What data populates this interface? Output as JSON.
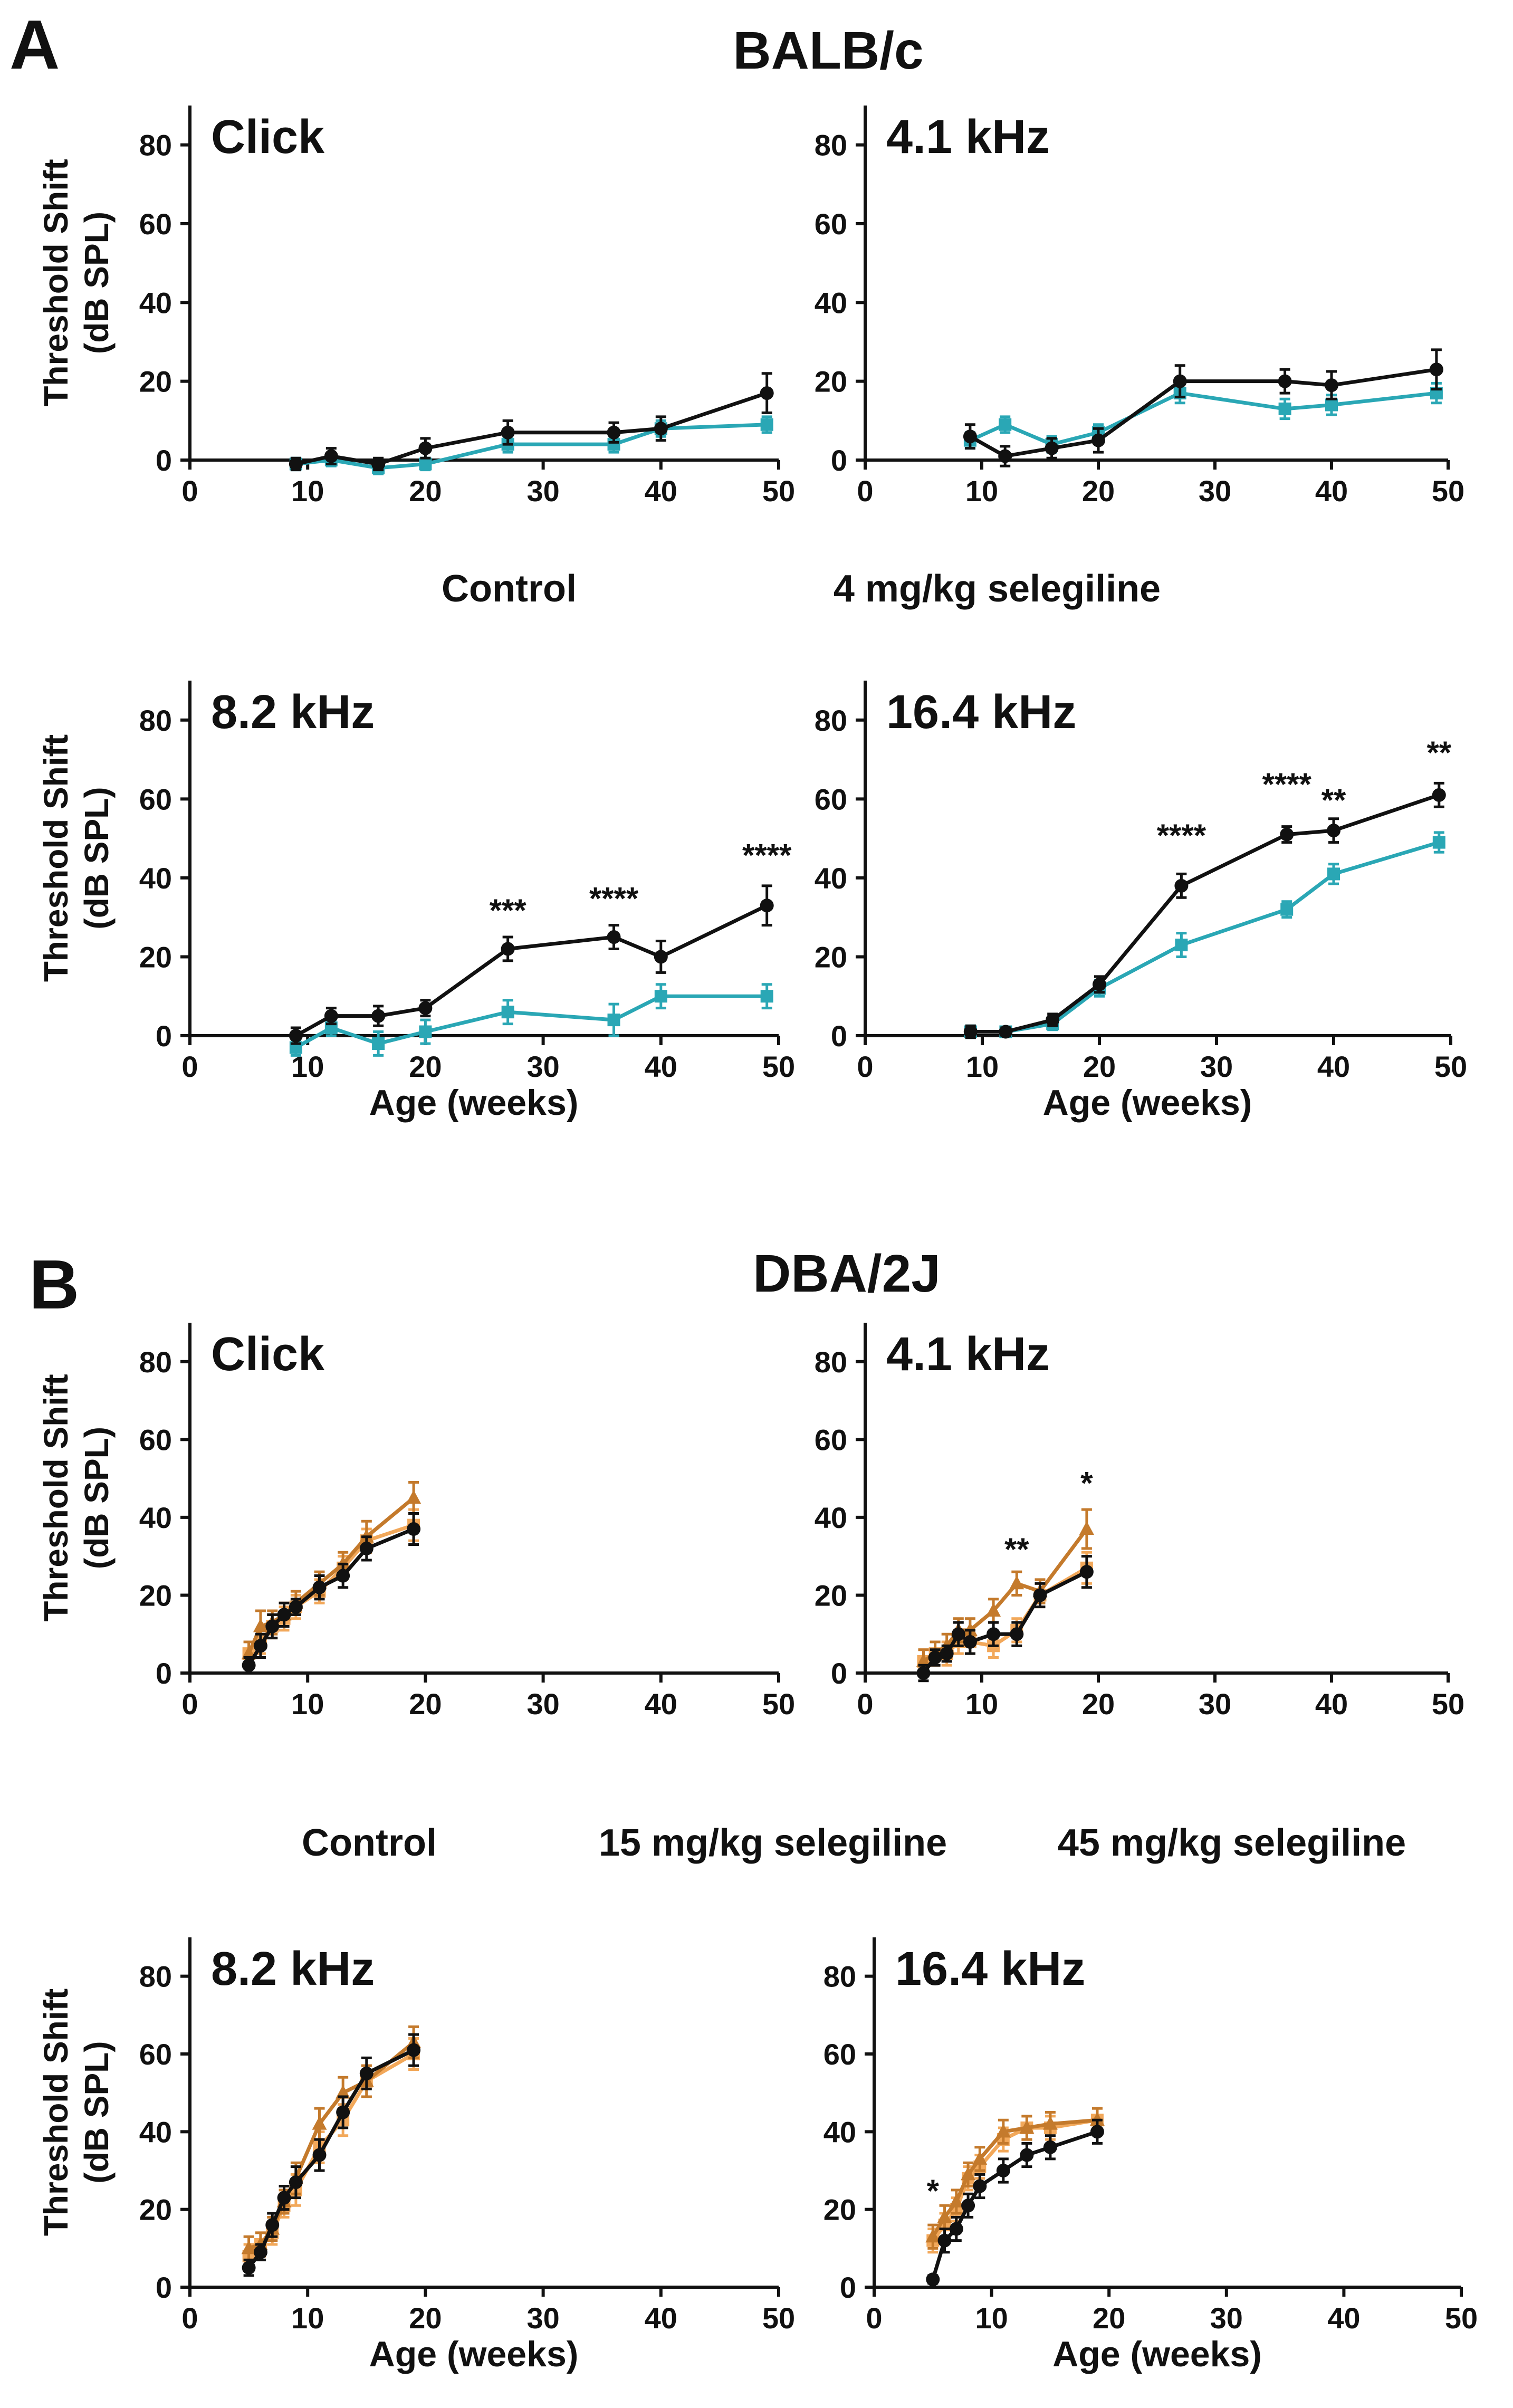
{
  "panel_a": {
    "letter": "A",
    "strain": "BALB/c",
    "legend": [
      {
        "label": "Control",
        "color": "#111111"
      },
      {
        "label": "4 mg/kg selegiline",
        "color": "#2aa7b5"
      }
    ]
  },
  "panel_b": {
    "letter": "B",
    "strain": "DBA/2J",
    "legend": [
      {
        "label": "Control",
        "color": "#111111"
      },
      {
        "label": "15 mg/kg selegiline",
        "color": "#f2a85a"
      },
      {
        "label": "45 mg/kg selegiline",
        "color": "#c47a2c"
      }
    ]
  },
  "chart_data": [
    {
      "type": "line",
      "title": "Click",
      "xlabel": "",
      "ylabel": "Threshold Shift (dB SPL)",
      "xlim": [
        0,
        50
      ],
      "ylim": [
        0,
        90
      ],
      "xticks": [
        0,
        10,
        20,
        30,
        40,
        50
      ],
      "yticks": [
        0,
        20,
        40,
        60,
        80
      ],
      "series": [
        {
          "name": "4 mg/kg selegiline",
          "color": "#2aa7b5",
          "marker": "square",
          "x": [
            9,
            12,
            16,
            20,
            27,
            36,
            40,
            49
          ],
          "y": [
            -1,
            0,
            -2,
            -1,
            4,
            4,
            8,
            9
          ],
          "err": [
            1.5,
            1.5,
            1.5,
            1.5,
            2,
            2,
            2,
            2
          ]
        },
        {
          "name": "Control",
          "color": "#111111",
          "marker": "circle",
          "x": [
            9,
            12,
            16,
            20,
            27,
            36,
            40,
            49
          ],
          "y": [
            -1,
            1,
            -1,
            3,
            7,
            7,
            8,
            17
          ],
          "err": [
            1.5,
            2,
            1.5,
            2.5,
            3,
            2.5,
            3,
            5
          ]
        }
      ],
      "annotations": []
    },
    {
      "type": "line",
      "title": "4.1 kHz",
      "xlabel": "",
      "ylabel": "",
      "xlim": [
        0,
        50
      ],
      "ylim": [
        0,
        90
      ],
      "xticks": [
        0,
        10,
        20,
        30,
        40,
        50
      ],
      "yticks": [
        0,
        20,
        40,
        60,
        80
      ],
      "series": [
        {
          "name": "4 mg/kg selegiline",
          "color": "#2aa7b5",
          "marker": "square",
          "x": [
            9,
            12,
            16,
            20,
            27,
            36,
            40,
            49
          ],
          "y": [
            5,
            9,
            4,
            7,
            17,
            13,
            14,
            17
          ],
          "err": [
            2,
            2,
            2,
            2,
            2.5,
            2.5,
            2.5,
            2.5
          ]
        },
        {
          "name": "Control",
          "color": "#111111",
          "marker": "circle",
          "x": [
            9,
            12,
            16,
            20,
            27,
            36,
            40,
            49
          ],
          "y": [
            6,
            1,
            3,
            5,
            20,
            20,
            19,
            23
          ],
          "err": [
            3,
            2.5,
            2.5,
            3,
            4,
            3,
            3.5,
            5
          ]
        }
      ],
      "annotations": []
    },
    {
      "type": "line",
      "title": "8.2 kHz",
      "xlabel": "Age (weeks)",
      "ylabel": "Threshold Shift (dB SPL)",
      "xlim": [
        0,
        50
      ],
      "ylim": [
        0,
        90
      ],
      "xticks": [
        0,
        10,
        20,
        30,
        40,
        50
      ],
      "yticks": [
        0,
        20,
        40,
        60,
        80
      ],
      "series": [
        {
          "name": "4 mg/kg selegiline",
          "color": "#2aa7b5",
          "marker": "square",
          "x": [
            9,
            12,
            16,
            20,
            27,
            36,
            40,
            49
          ],
          "y": [
            -3,
            2,
            -2,
            1,
            6,
            4,
            10,
            10
          ],
          "err": [
            2,
            2,
            3,
            3,
            3,
            4,
            3,
            3
          ]
        },
        {
          "name": "Control",
          "color": "#111111",
          "marker": "circle",
          "x": [
            9,
            12,
            16,
            20,
            27,
            36,
            40,
            49
          ],
          "y": [
            0,
            5,
            5,
            7,
            22,
            25,
            20,
            33
          ],
          "err": [
            2,
            2,
            2.5,
            2,
            3,
            3,
            4,
            5
          ]
        }
      ],
      "annotations": [
        {
          "x": 27,
          "y": 29,
          "text": "***"
        },
        {
          "x": 36,
          "y": 32,
          "text": "****"
        },
        {
          "x": 49,
          "y": 43,
          "text": "****"
        }
      ]
    },
    {
      "type": "line",
      "title": "16.4 kHz",
      "xlabel": "Age (weeks)",
      "ylabel": "",
      "xlim": [
        0,
        50
      ],
      "ylim": [
        0,
        90
      ],
      "xticks": [
        0,
        10,
        20,
        30,
        40,
        50
      ],
      "yticks": [
        0,
        20,
        40,
        60,
        80
      ],
      "series": [
        {
          "name": "4 mg/kg selegiline",
          "color": "#2aa7b5",
          "marker": "square",
          "x": [
            9,
            12,
            16,
            20,
            27,
            36,
            40,
            49
          ],
          "y": [
            1,
            1,
            3,
            12,
            23,
            32,
            41,
            49
          ],
          "err": [
            1.5,
            1,
            1.5,
            2,
            3,
            2,
            2.5,
            2.5
          ]
        },
        {
          "name": "Control",
          "color": "#111111",
          "marker": "circle",
          "x": [
            9,
            12,
            16,
            20,
            27,
            36,
            40,
            49
          ],
          "y": [
            1,
            1,
            4,
            13,
            38,
            51,
            52,
            61
          ],
          "err": [
            1.5,
            1,
            1.5,
            2,
            3,
            2,
            3,
            3
          ]
        }
      ],
      "annotations": [
        {
          "x": 27,
          "y": 48,
          "text": "****"
        },
        {
          "x": 36,
          "y": 61,
          "text": "****"
        },
        {
          "x": 40,
          "y": 57,
          "text": "**"
        },
        {
          "x": 49,
          "y": 69,
          "text": "**"
        }
      ]
    },
    {
      "type": "line",
      "title": "Click",
      "xlabel": "",
      "ylabel": "Threshold Shift (dB SPL)",
      "xlim": [
        0,
        50
      ],
      "ylim": [
        0,
        90
      ],
      "xticks": [
        0,
        10,
        20,
        30,
        40,
        50
      ],
      "yticks": [
        0,
        20,
        40,
        60,
        80
      ],
      "series": [
        {
          "name": "15 mg/kg selegiline",
          "color": "#f2a85a",
          "marker": "square",
          "x": [
            5,
            6,
            7,
            8,
            9,
            11,
            13,
            15,
            19
          ],
          "y": [
            5,
            8,
            12,
            14,
            17,
            21,
            27,
            34,
            38
          ],
          "err": [
            3,
            3,
            3,
            3,
            3,
            3,
            3,
            3,
            4
          ]
        },
        {
          "name": "45 mg/kg selegiline",
          "color": "#c47a2c",
          "marker": "triangle",
          "x": [
            5,
            6,
            7,
            8,
            9,
            11,
            13,
            15,
            19
          ],
          "y": [
            5,
            12,
            13,
            15,
            18,
            23,
            28,
            35,
            45
          ],
          "err": [
            3,
            4,
            3,
            3,
            3,
            3,
            3,
            4,
            4
          ]
        },
        {
          "name": "Control",
          "color": "#111111",
          "marker": "circle",
          "x": [
            5,
            6,
            7,
            8,
            9,
            11,
            13,
            15,
            19
          ],
          "y": [
            2,
            7,
            12,
            15,
            17,
            22,
            25,
            32,
            37
          ],
          "err": [
            2,
            3,
            3,
            3,
            2,
            3,
            3,
            3,
            4
          ]
        }
      ],
      "annotations": []
    },
    {
      "type": "line",
      "title": "4.1 kHz",
      "xlabel": "",
      "ylabel": "",
      "xlim": [
        0,
        50
      ],
      "ylim": [
        0,
        90
      ],
      "xticks": [
        0,
        10,
        20,
        30,
        40,
        50
      ],
      "yticks": [
        0,
        20,
        40,
        60,
        80
      ],
      "series": [
        {
          "name": "15 mg/kg selegiline",
          "color": "#f2a85a",
          "marker": "square",
          "x": [
            5,
            6,
            7,
            8,
            9,
            11,
            13,
            15,
            19
          ],
          "y": [
            3,
            5,
            5,
            8,
            8,
            7,
            11,
            20,
            27
          ],
          "err": [
            3,
            3,
            3,
            3,
            3,
            3,
            3,
            3,
            4
          ]
        },
        {
          "name": "45 mg/kg selegiline",
          "color": "#c47a2c",
          "marker": "triangle",
          "x": [
            5,
            6,
            7,
            8,
            9,
            11,
            13,
            15,
            19
          ],
          "y": [
            3,
            5,
            7,
            11,
            11,
            16,
            23,
            21,
            37
          ],
          "err": [
            3,
            3,
            3,
            3,
            3,
            3,
            3,
            3,
            5
          ]
        },
        {
          "name": "Control",
          "color": "#111111",
          "marker": "circle",
          "x": [
            5,
            6,
            7,
            8,
            9,
            11,
            13,
            15,
            19
          ],
          "y": [
            0,
            4,
            5,
            10,
            8,
            10,
            10,
            20,
            26
          ],
          "err": [
            2,
            2,
            2,
            3,
            3,
            3,
            3,
            3,
            4
          ]
        }
      ],
      "annotations": [
        {
          "x": 13,
          "y": 29,
          "text": "**"
        },
        {
          "x": 19,
          "y": 46,
          "text": "*"
        }
      ]
    },
    {
      "type": "line",
      "title": "8.2 kHz",
      "xlabel": "Age (weeks)",
      "ylabel": "Threshold Shift (dB SPL)",
      "xlim": [
        0,
        50
      ],
      "ylim": [
        0,
        90
      ],
      "xticks": [
        0,
        10,
        20,
        30,
        40,
        50
      ],
      "yticks": [
        0,
        20,
        40,
        60,
        80
      ],
      "series": [
        {
          "name": "15 mg/kg selegiline",
          "color": "#f2a85a",
          "marker": "square",
          "x": [
            5,
            6,
            7,
            8,
            9,
            11,
            13,
            15,
            19
          ],
          "y": [
            8,
            11,
            14,
            21,
            25,
            36,
            43,
            53,
            60
          ],
          "err": [
            3,
            3,
            3,
            3,
            4,
            4,
            4,
            4,
            4
          ]
        },
        {
          "name": "45 mg/kg selegiline",
          "color": "#c47a2c",
          "marker": "triangle",
          "x": [
            5,
            6,
            7,
            8,
            9,
            11,
            13,
            15,
            19
          ],
          "y": [
            10,
            11,
            15,
            22,
            28,
            42,
            50,
            53,
            63
          ],
          "err": [
            3,
            3,
            3,
            3,
            4,
            4,
            4,
            4,
            4
          ]
        },
        {
          "name": "Control",
          "color": "#111111",
          "marker": "circle",
          "x": [
            5,
            6,
            7,
            8,
            9,
            11,
            13,
            15,
            19
          ],
          "y": [
            5,
            9,
            16,
            23,
            27,
            34,
            45,
            55,
            61
          ],
          "err": [
            2,
            2,
            3,
            3,
            4,
            4,
            4,
            4,
            4
          ]
        }
      ],
      "annotations": []
    },
    {
      "type": "line",
      "title": "16.4 kHz",
      "xlabel": "Age (weeks)",
      "ylabel": "",
      "xlim": [
        0,
        50
      ],
      "ylim": [
        0,
        90
      ],
      "xticks": [
        0,
        10,
        20,
        30,
        40,
        50
      ],
      "yticks": [
        0,
        20,
        40,
        60,
        80
      ],
      "series": [
        {
          "name": "15 mg/kg selegiline",
          "color": "#f2a85a",
          "marker": "square",
          "x": [
            5,
            6,
            7,
            8,
            9,
            11,
            13,
            15,
            19
          ],
          "y": [
            12,
            16,
            20,
            28,
            31,
            38,
            41,
            41,
            43
          ],
          "err": [
            3,
            3,
            3,
            3,
            3,
            3,
            3,
            3,
            3
          ]
        },
        {
          "name": "45 mg/kg selegiline",
          "color": "#c47a2c",
          "marker": "triangle",
          "x": [
            5,
            6,
            7,
            8,
            9,
            11,
            13,
            15,
            19
          ],
          "y": [
            13,
            18,
            22,
            29,
            33,
            40,
            41,
            42,
            43
          ],
          "err": [
            3,
            3,
            3,
            3,
            3,
            3,
            3,
            3,
            3
          ]
        },
        {
          "name": "Control",
          "color": "#111111",
          "marker": "circle",
          "x": [
            5,
            6,
            7,
            8,
            9,
            11,
            13,
            15,
            19
          ],
          "y": [
            2,
            12,
            15,
            21,
            26,
            30,
            34,
            36,
            40
          ],
          "err": [
            1,
            3,
            3,
            3,
            3,
            3,
            3,
            3,
            3
          ]
        }
      ],
      "annotations": [
        {
          "x": 5,
          "y": 22,
          "text": "*"
        }
      ]
    }
  ]
}
